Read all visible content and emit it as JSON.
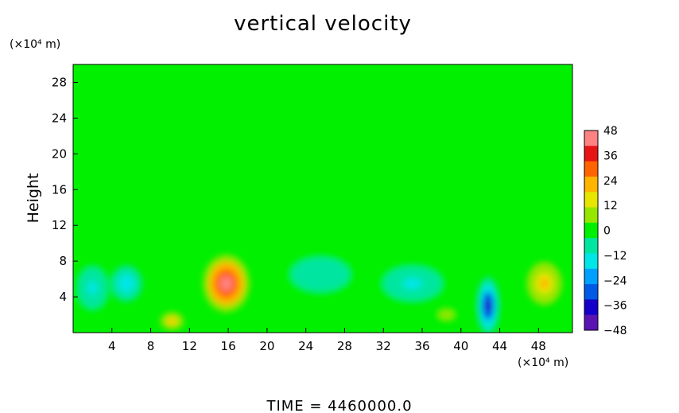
{
  "chart_data": {
    "type": "heatmap",
    "title": "vertical velocity",
    "ylabel": "Height",
    "xunit": "(×10⁴ m)",
    "yunit": "(×10⁴ m)",
    "footer": "TIME  =  4460000.0",
    "xlim": [
      0,
      51.5
    ],
    "ylim": [
      0,
      30
    ],
    "xticks": [
      "4",
      "8",
      "12",
      "16",
      "20",
      "24",
      "28",
      "32",
      "36",
      "40",
      "44",
      "48"
    ],
    "yticks": [
      "4",
      "8",
      "12",
      "16",
      "20",
      "24",
      "28"
    ],
    "colorbar": {
      "range": [
        -48,
        48
      ],
      "labels": [
        "48",
        "36",
        "24",
        "12",
        "0",
        "−12",
        "−24",
        "−36",
        "−48"
      ]
    },
    "features": [
      {
        "x": 15.8,
        "y": 5.5,
        "value": 44,
        "rx": 2.4,
        "ry": 3.2
      },
      {
        "x": 42.8,
        "y": 3.0,
        "value": -40,
        "rx": 1.2,
        "ry": 3.2
      },
      {
        "x": 48.6,
        "y": 5.5,
        "value": 22,
        "rx": 1.8,
        "ry": 2.4
      },
      {
        "x": 10.2,
        "y": 1.3,
        "value": 22,
        "rx": 1.2,
        "ry": 1.0
      },
      {
        "x": 5.5,
        "y": 5.5,
        "value": -20,
        "rx": 1.6,
        "ry": 2.0
      },
      {
        "x": 35.0,
        "y": 5.5,
        "value": -14,
        "rx": 4.0,
        "ry": 2.5
      },
      {
        "x": 25.5,
        "y": 6.5,
        "value": -12,
        "rx": 4.0,
        "ry": 2.5
      },
      {
        "x": 2.0,
        "y": 5.0,
        "value": -13,
        "rx": 2.0,
        "ry": 3.0
      },
      {
        "x": 38.5,
        "y": 2.0,
        "value": 6,
        "rx": 1.5,
        "ry": 1.0
      }
    ],
    "colors": {
      "background": "#00f000",
      "scale": [
        "#5a14b4",
        "#1400c8",
        "#005ae6",
        "#00a0ff",
        "#00e6e6",
        "#00e6a0",
        "#00f000",
        "#96e600",
        "#e6e600",
        "#ffb400",
        "#ff6400",
        "#e61414",
        "#ff8282"
      ]
    }
  }
}
